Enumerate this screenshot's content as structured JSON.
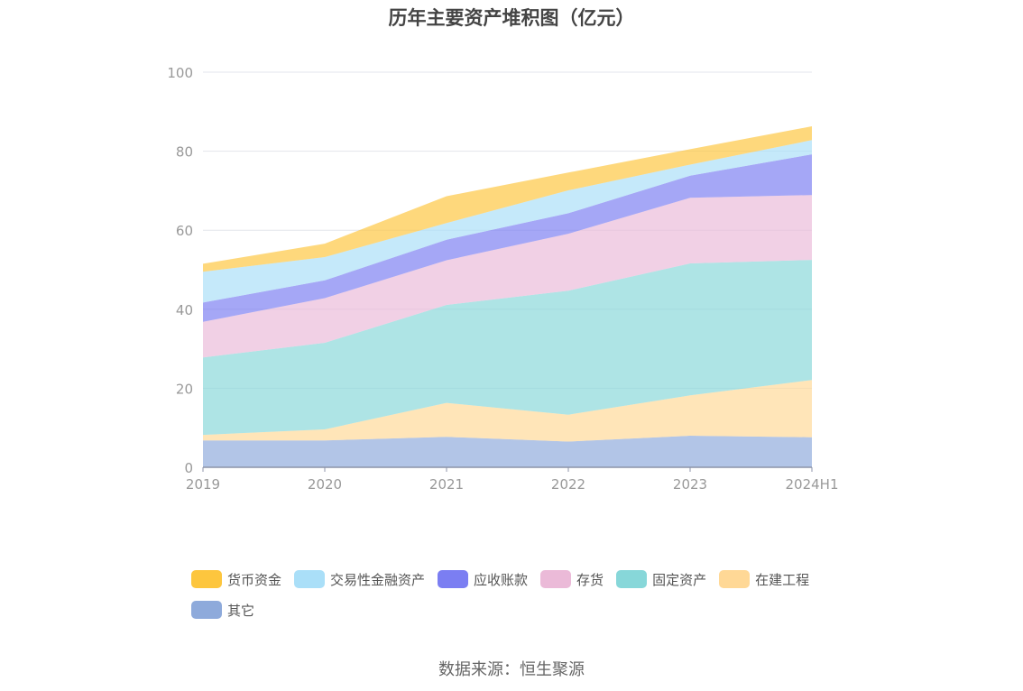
{
  "chart_data": {
    "type": "area",
    "stacked": true,
    "title": "历年主要资产堆积图（亿元）",
    "xlabel": "",
    "ylabel": "",
    "ylim": [
      0,
      100
    ],
    "yticks": [
      0,
      20,
      40,
      60,
      80,
      100
    ],
    "categories": [
      "2019",
      "2020",
      "2021",
      "2022",
      "2023",
      "2024H1"
    ],
    "grid": true,
    "legend_position": "bottom",
    "series": [
      {
        "name": "其它",
        "color": "#8eaadb",
        "values": [
          6.8,
          6.8,
          7.7,
          6.5,
          8.0,
          7.6
        ]
      },
      {
        "name": "在建工程",
        "color": "#ffd896",
        "values": [
          1.4,
          2.8,
          8.6,
          6.8,
          10.2,
          14.5
        ]
      },
      {
        "name": "固定资产",
        "color": "#87d7d9",
        "values": [
          19.6,
          21.9,
          24.8,
          31.4,
          33.4,
          30.4
        ]
      },
      {
        "name": "存货",
        "color": "#ebbad8",
        "values": [
          9.0,
          11.3,
          11.3,
          14.4,
          16.6,
          16.4
        ]
      },
      {
        "name": "应收账款",
        "color": "#7b7ef2",
        "values": [
          4.9,
          4.5,
          5.2,
          5.2,
          5.6,
          10.3
        ]
      },
      {
        "name": "交易性金融资产",
        "color": "#aadff8",
        "values": [
          7.8,
          5.9,
          4.2,
          5.8,
          2.8,
          3.6
        ]
      },
      {
        "name": "货币资金",
        "color": "#fdc63e",
        "values": [
          2.0,
          3.4,
          6.8,
          4.5,
          3.9,
          3.5
        ]
      }
    ]
  },
  "legend_order": [
    "货币资金",
    "交易性金融资产",
    "应收账款",
    "存货",
    "固定资产",
    "在建工程",
    "其它"
  ],
  "source": "数据来源：恒生聚源"
}
